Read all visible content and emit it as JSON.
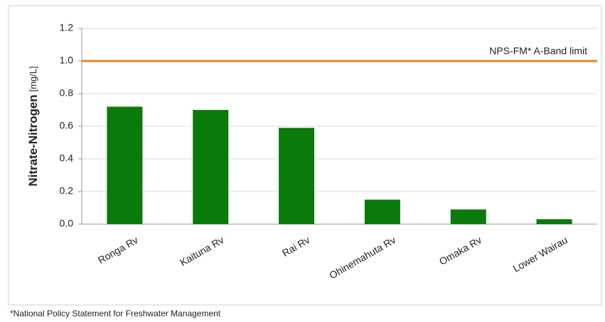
{
  "chart_data": {
    "type": "bar",
    "y_label": "Nitrate-Nitrogen",
    "y_label_unit": "[mg/L]",
    "categories": [
      "Ronga Rv",
      "Kaituna Rv",
      "Rai Rv",
      "Ohinemahuta Rv",
      "Omaka Rv",
      "Lower Wairau"
    ],
    "values": [
      0.72,
      0.7,
      0.59,
      0.15,
      0.09,
      0.03
    ],
    "color": "#0a7a0a",
    "ylim": [
      0,
      1.2
    ],
    "yticks": [
      {
        "value": 0,
        "label": "0.0"
      },
      0.2,
      0.4,
      0.6,
      0.8,
      {
        "value": 1,
        "label": "1.0"
      },
      1.2
    ],
    "grid": true,
    "reference_line": {
      "value": 1.0,
      "label": "NPS-FM* A-Band limit",
      "color": "#e8852a"
    },
    "footnote": "*National Policy Statement for Freshwater Management"
  }
}
